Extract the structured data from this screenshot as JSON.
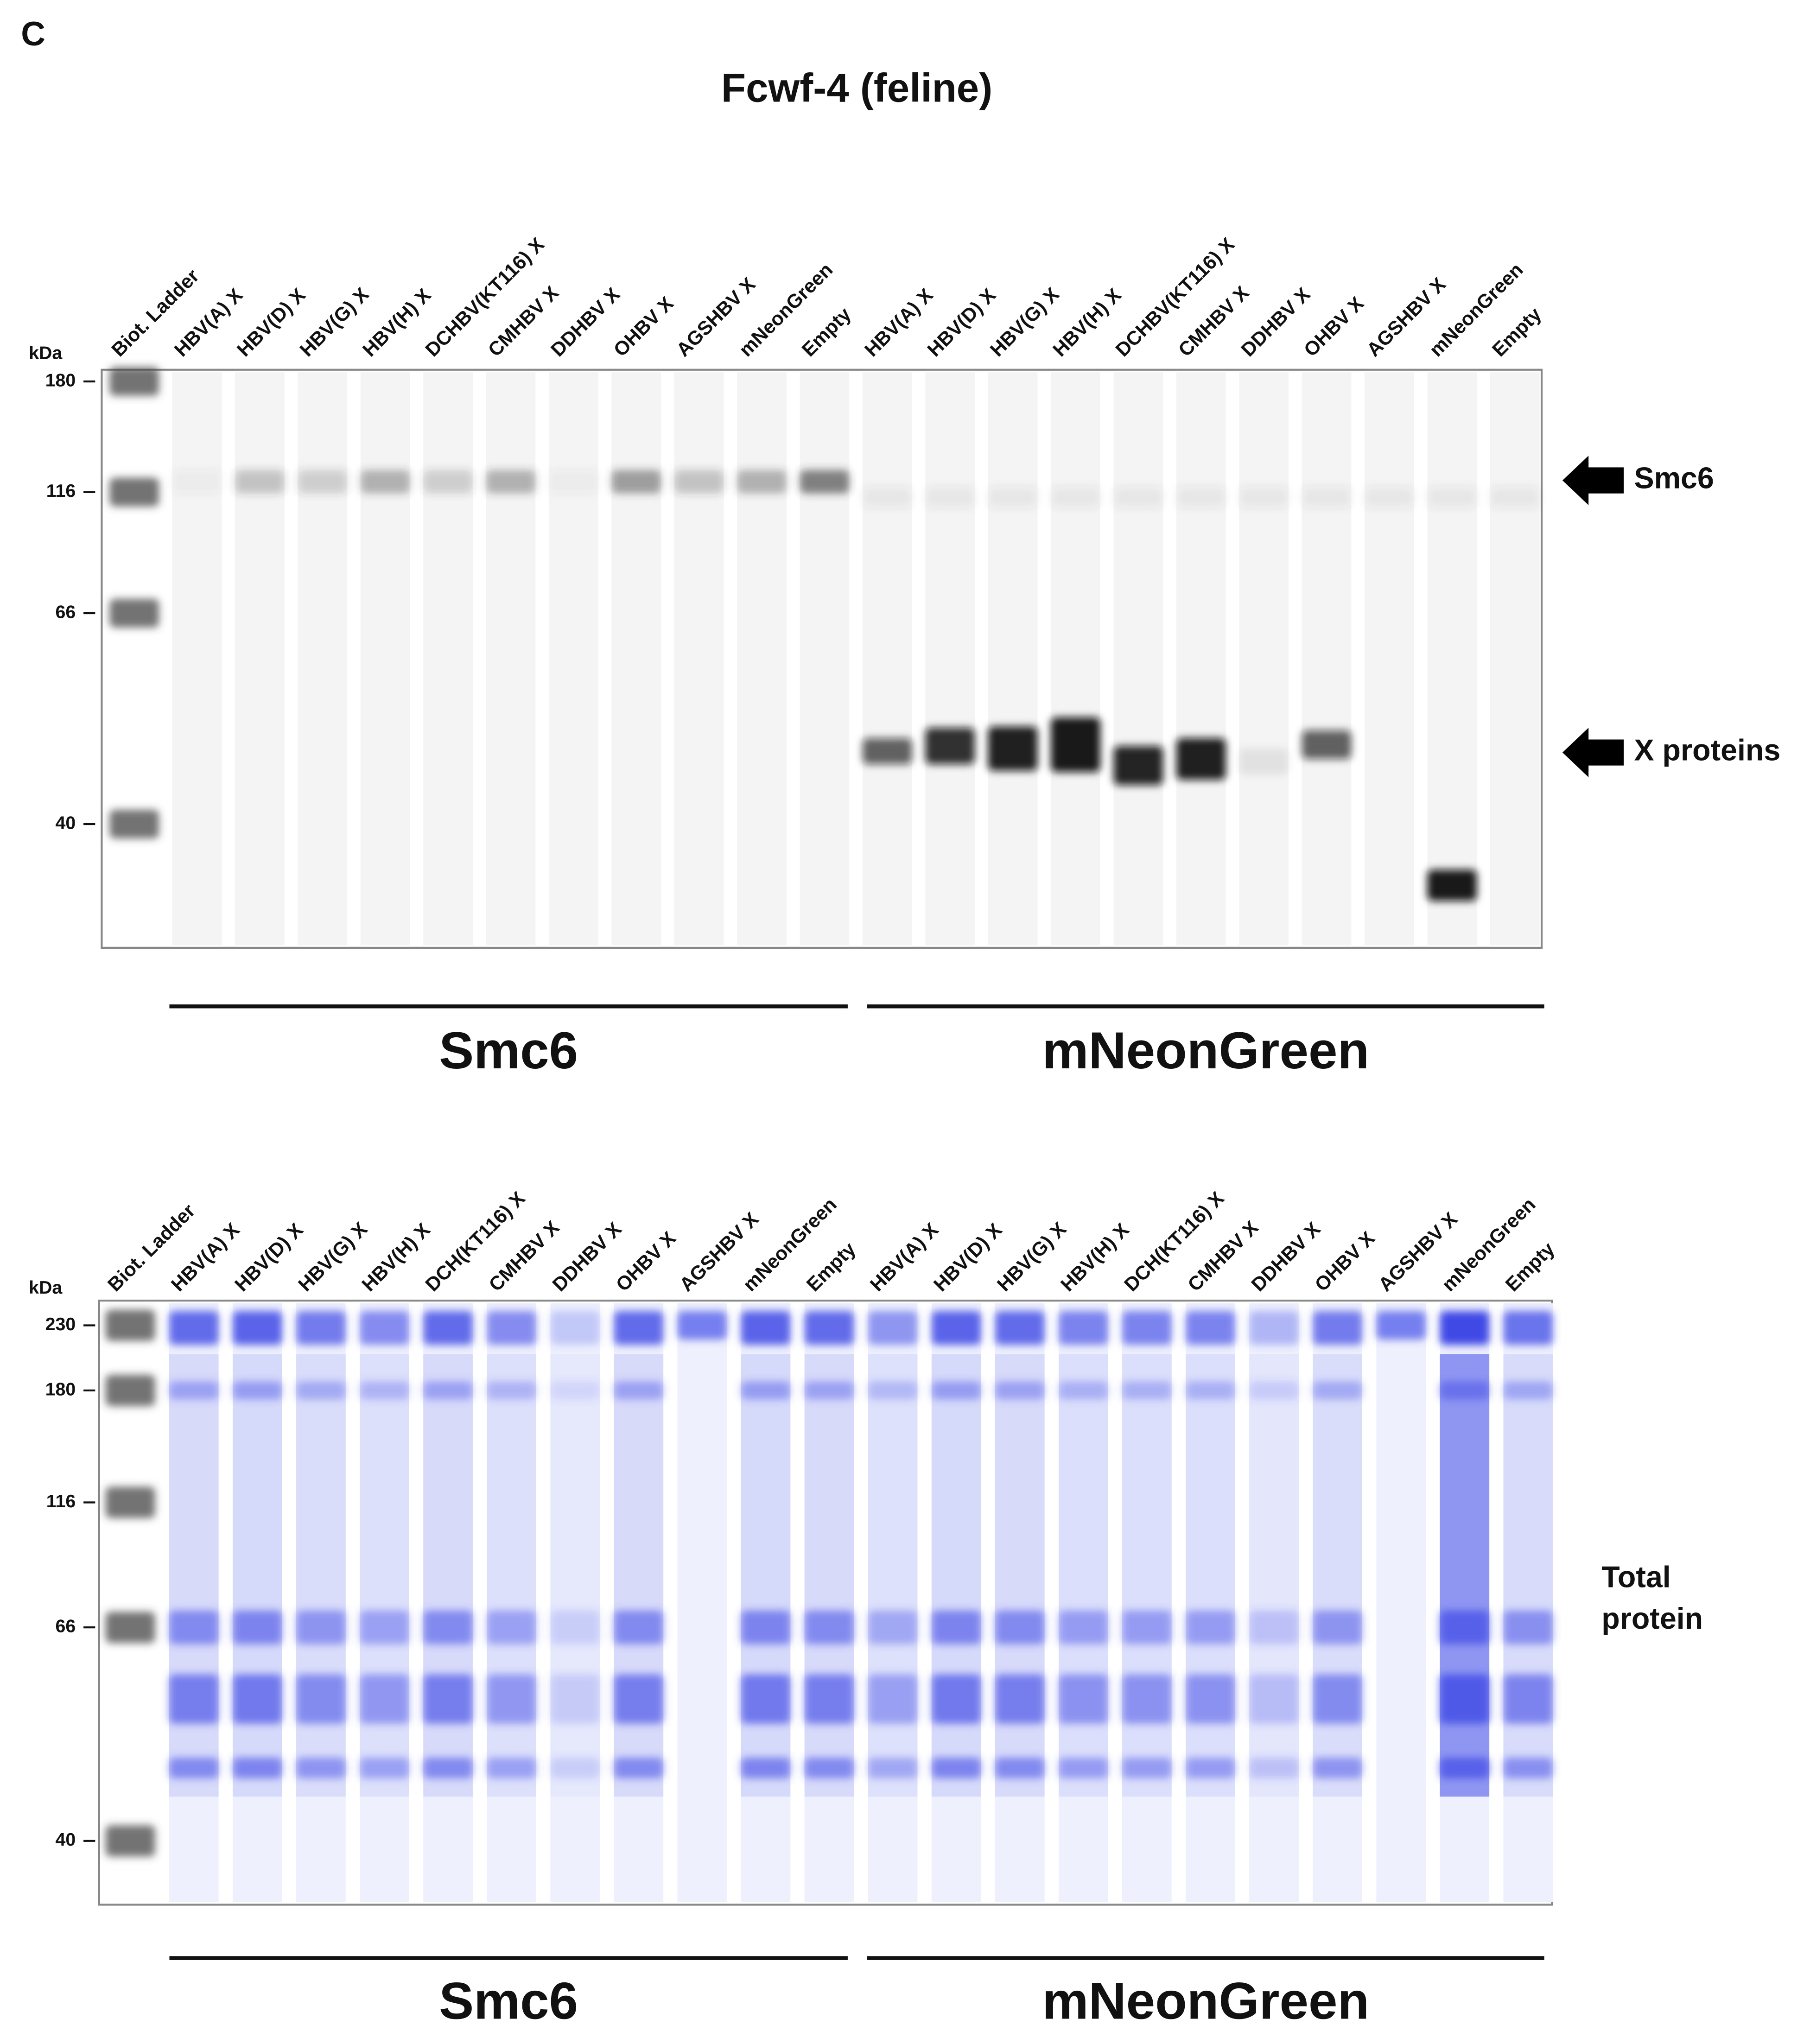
{
  "panel_label": "C",
  "title": "Fcwf-4 (feline)",
  "blots": [
    {
      "unit": "kDa",
      "markers": [
        "180",
        "116",
        "66",
        "40"
      ],
      "lanes": [
        "Biot. Ladder",
        "HBV(A) X",
        "HBV(D) X",
        "HBV(G) X",
        "HBV(H) X",
        "DCHBV(KT116) X",
        "CMHBV X",
        "DDHBV X",
        "OHBV X",
        "AGSHBV X",
        "mNeonGreen",
        "Empty",
        "HBV(A) X",
        "HBV(D) X",
        "HBV(G) X",
        "HBV(H) X",
        "DCHBV(KT116) X",
        "CMHBV X",
        "DDHBV X",
        "OHBV X",
        "AGSHBV X",
        "mNeonGreen",
        "Empty"
      ],
      "groups": [
        "Smc6",
        "mNeonGreen"
      ],
      "annotations": [
        "Smc6",
        "X proteins"
      ]
    },
    {
      "unit": "kDa",
      "markers": [
        "230",
        "180",
        "116",
        "66",
        "40"
      ],
      "lanes": [
        "Biot. Ladder",
        "HBV(A) X",
        "HBV(D) X",
        "HBV(G) X",
        "HBV(H) X",
        "DCH(KT116) X",
        "CMHBV X",
        "DDHBV X",
        "OHBV X",
        "AGSHBV X",
        "mNeonGreen",
        "Empty",
        "HBV(A) X",
        "HBV(D) X",
        "HBV(G) X",
        "HBV(H) X",
        "DCH(KT116) X",
        "CMHBV X",
        "DDHBV X",
        "OHBV X",
        "AGSHBV X",
        "mNeonGreen",
        "Empty"
      ],
      "groups": [
        "Smc6",
        "mNeonGreen"
      ],
      "side_label": [
        "Total",
        "protein"
      ]
    }
  ]
}
